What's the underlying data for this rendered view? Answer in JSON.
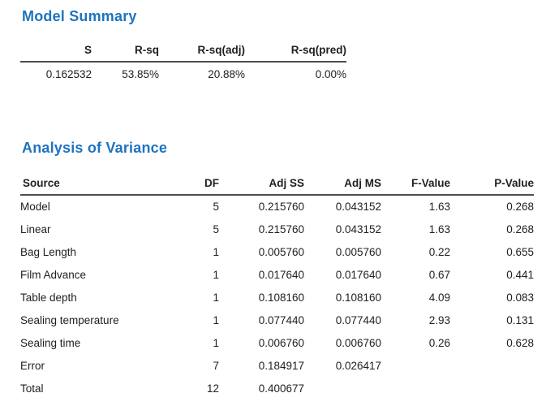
{
  "accent_color": "#1E73BE",
  "model_summary": {
    "title": "Model Summary",
    "columns": [
      "S",
      "R-sq",
      "R-sq(adj)",
      "R-sq(pred)"
    ],
    "values": [
      "0.162532",
      "53.85%",
      "20.88%",
      "0.00%"
    ]
  },
  "anova": {
    "title": "Analysis of Variance",
    "columns": [
      "Source",
      "DF",
      "Adj SS",
      "Adj MS",
      "F-Value",
      "P-Value"
    ],
    "rows": [
      {
        "source": "Model",
        "indent": 0,
        "df": "5",
        "adj_ss": "0.215760",
        "adj_ms": "0.043152",
        "f_value": "1.63",
        "p_value": "0.268"
      },
      {
        "source": "Linear",
        "indent": 1,
        "df": "5",
        "adj_ss": "0.215760",
        "adj_ms": "0.043152",
        "f_value": "1.63",
        "p_value": "0.268"
      },
      {
        "source": "Bag Length",
        "indent": 2,
        "df": "1",
        "adj_ss": "0.005760",
        "adj_ms": "0.005760",
        "f_value": "0.22",
        "p_value": "0.655"
      },
      {
        "source": "Film Advance",
        "indent": 2,
        "df": "1",
        "adj_ss": "0.017640",
        "adj_ms": "0.017640",
        "f_value": "0.67",
        "p_value": "0.441"
      },
      {
        "source": "Table depth",
        "indent": 2,
        "df": "1",
        "adj_ss": "0.108160",
        "adj_ms": "0.108160",
        "f_value": "4.09",
        "p_value": "0.083"
      },
      {
        "source": "Sealing temperature",
        "indent": 2,
        "df": "1",
        "adj_ss": "0.077440",
        "adj_ms": "0.077440",
        "f_value": "2.93",
        "p_value": "0.131"
      },
      {
        "source": "Sealing time",
        "indent": 2,
        "df": "1",
        "adj_ss": "0.006760",
        "adj_ms": "0.006760",
        "f_value": "0.26",
        "p_value": "0.628"
      },
      {
        "source": "Error",
        "indent": 0,
        "df": "7",
        "adj_ss": "0.184917",
        "adj_ms": "0.026417",
        "f_value": "",
        "p_value": ""
      },
      {
        "source": "Total",
        "indent": 0,
        "df": "12",
        "adj_ss": "0.400677",
        "adj_ms": "",
        "f_value": "",
        "p_value": ""
      }
    ]
  }
}
